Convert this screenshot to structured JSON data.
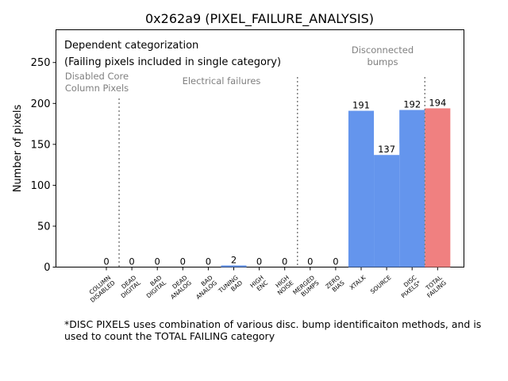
{
  "chart_data": {
    "type": "bar",
    "title": "0x262a9 (PIXEL_FAILURE_ANALYSIS)",
    "xlabel": "",
    "ylabel": "Number of pixels",
    "ylim": [
      0,
      290
    ],
    "yticks": [
      0,
      50,
      100,
      150,
      200,
      250
    ],
    "grid": false,
    "categories": [
      "COLUMN\nDISABLED",
      "DEAD\nDIGITAL",
      "BAD\nDIGITAL",
      "DEAD\nANALOG",
      "BAD\nANALOG",
      "TUNING\nBAD",
      "HIGH\nENC",
      "HIGH\nNOISE",
      "MERGED\nBUMPS",
      "ZERO\nBIAS",
      "XTALK",
      "SOURCE",
      "DISC\nPIXELS*",
      "TOTAL\nFAILING"
    ],
    "values": [
      0,
      0,
      0,
      0,
      0,
      2,
      0,
      0,
      0,
      0,
      191,
      137,
      192,
      194
    ],
    "value_labels": [
      "0",
      "0",
      "0",
      "0",
      "0",
      "2",
      "0",
      "0",
      "0",
      "0",
      "191",
      "137",
      "192",
      "194"
    ],
    "bar_colors": [
      "#6495ed",
      "#6495ed",
      "#6495ed",
      "#6495ed",
      "#6495ed",
      "#6495ed",
      "#6495ed",
      "#6495ed",
      "#6495ed",
      "#6495ed",
      "#6495ed",
      "#6495ed",
      "#6495ed",
      "#f08080"
    ],
    "annotations": {
      "heading_line1": "Dependent categorization",
      "heading_line2": "(Failing pixels included in single category)",
      "section_disabled_line1": "Disabled Core",
      "section_disabled_line2": "Column Pixels",
      "section_electrical": "Electrical failures",
      "section_bumps_line1": "Disconnected",
      "section_bumps_line2": "bumps"
    },
    "separators_after_category": [
      "COLUMN\nDISABLED",
      "HIGH\nNOISE",
      "DISC\nPIXELS*"
    ]
  },
  "footnote": "*DISC PIXELS uses combination of various disc. bump identificaiton methods, and is used to count the TOTAL FAILING category"
}
